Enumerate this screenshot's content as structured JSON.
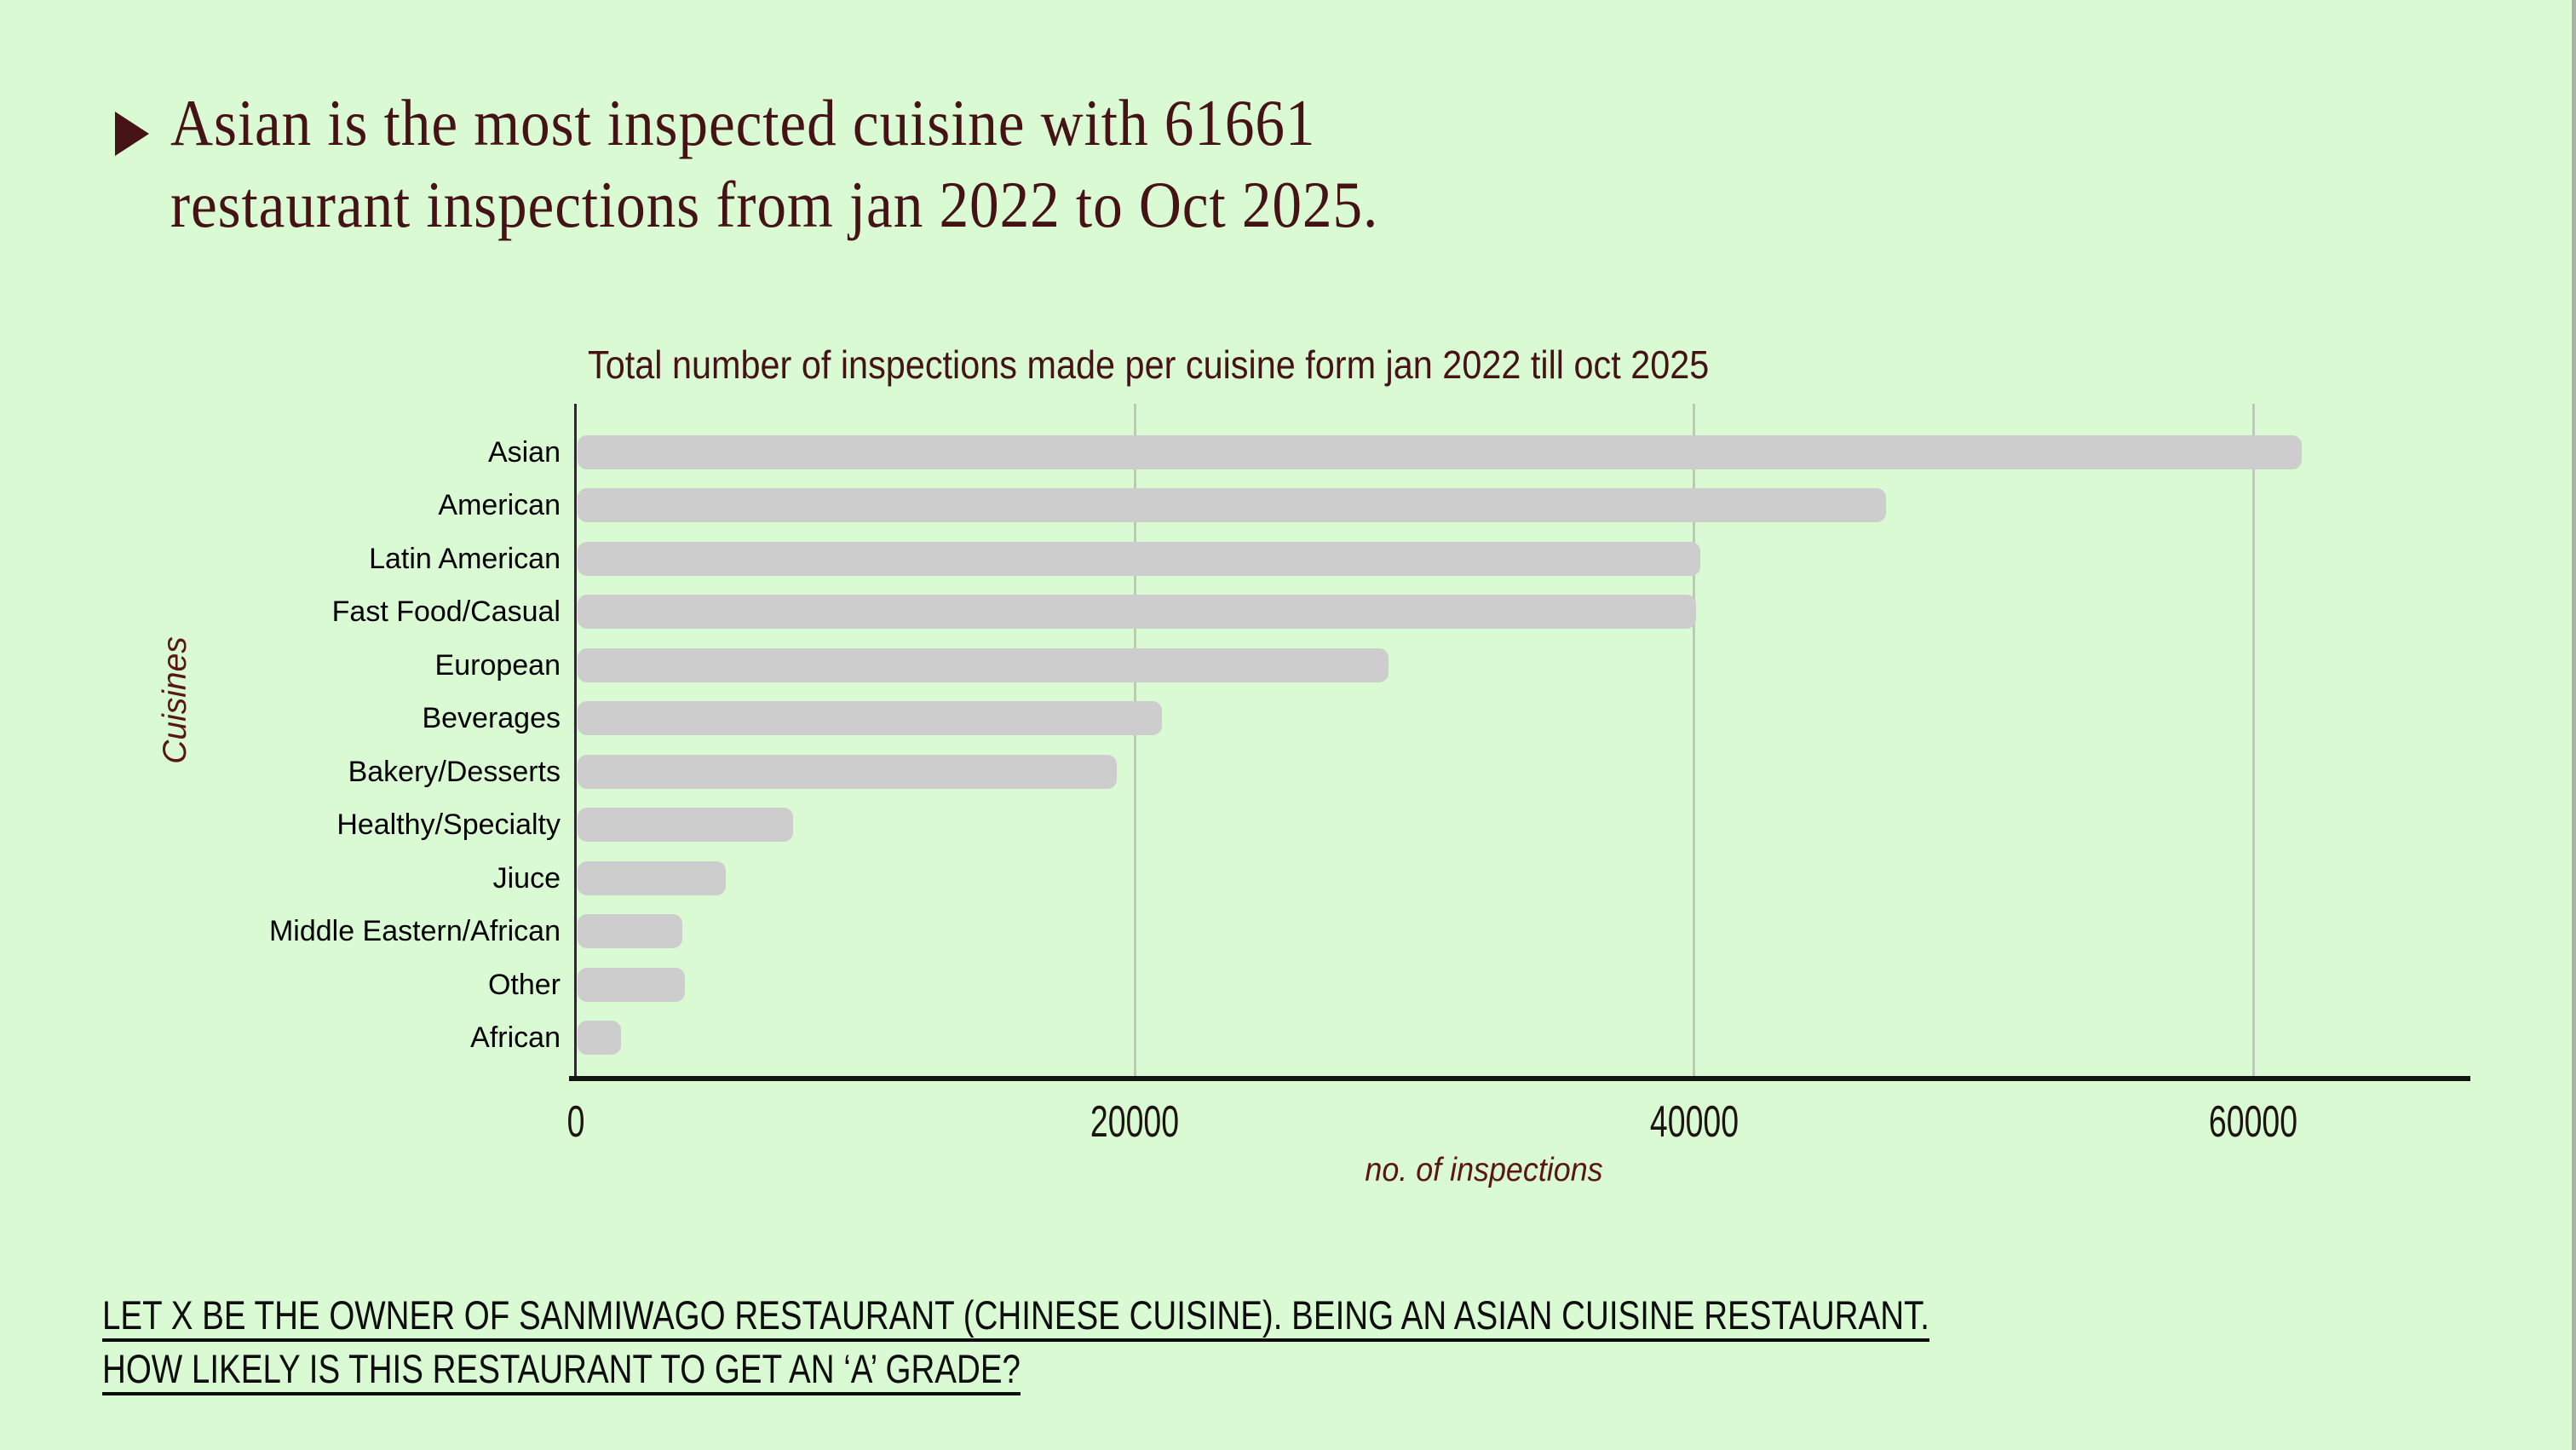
{
  "slide": {
    "headline_line1": "Asian is the most inspected cuisine with 61661",
    "headline_line2": "restaurant inspections from jan 2022 to Oct 2025.",
    "footer_line1": "LET X BE THE OWNER OF SANMIWAGO RESTAURANT (CHINESE CUISINE). BEING AN ASIAN CUISINE RESTAURANT.",
    "footer_line2": "HOW LIKELY IS THIS RESTAURANT TO GET AN ‘A’ GRADE?"
  },
  "chart_data": {
    "type": "bar",
    "orientation": "horizontal",
    "title": "Total number of inspections made per cuisine form jan 2022 till oct 2025",
    "categories": [
      "Asian",
      "American",
      "Latin American",
      "Fast Food/Casual",
      "European",
      "Beverages",
      "Bakery/Desserts",
      "Healthy/Specialty",
      "Jiuce",
      "Middle Eastern/African",
      "Other",
      "African"
    ],
    "values": [
      61661,
      46800,
      40150,
      40000,
      29000,
      20900,
      19300,
      7700,
      5300,
      3750,
      3850,
      1550
    ],
    "xlabel": "no. of inspections",
    "ylabel": "Cuisines",
    "xlim": [
      0,
      67700
    ],
    "xticks": [
      0,
      20000,
      40000,
      60000
    ],
    "grid": "vertical",
    "legend": "none",
    "bar_color": "#cdcdcd"
  },
  "colors": {
    "background": "#d9fad3",
    "accent_text": "#451316",
    "axis_label_text": "#5a170f",
    "bar_fill": "#cdcdcd",
    "gridline": "#bdc9b8",
    "category_text": "#000000",
    "footer_text": "#0d0d0d"
  }
}
